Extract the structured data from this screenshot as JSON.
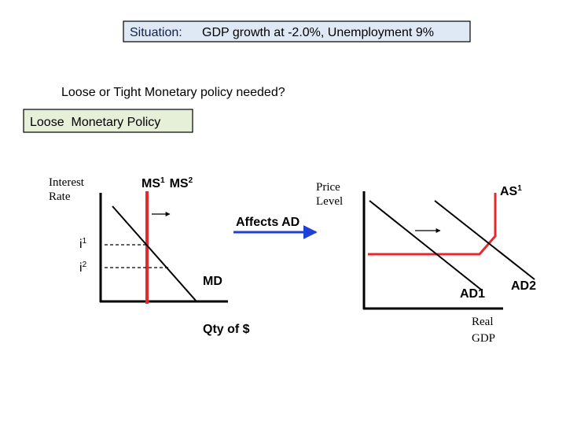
{
  "header": {
    "situation_label": "Situation:",
    "situation_text": "GDP growth at -2.0%, Unemployment 9%"
  },
  "question": "Loose or Tight Monetary policy needed?",
  "answer": "Loose  Monetary Policy",
  "money_market": {
    "y_axis": [
      "Interest",
      "Rate"
    ],
    "x_axis": "Qty of $",
    "supply_labels": [
      {
        "base": "MS",
        "sup": "1"
      },
      {
        "base": "MS",
        "sup": "2"
      }
    ],
    "demand_label": "MD",
    "rates": [
      {
        "base": "i",
        "sup": "1"
      },
      {
        "base": "i",
        "sup": "2"
      }
    ]
  },
  "link_label": "Affects AD",
  "goods_market": {
    "y_axis": [
      "Price",
      "Level"
    ],
    "x_axis": [
      "Real",
      "GDP"
    ],
    "supply_label": {
      "base": "AS",
      "sup": "1"
    },
    "demand_labels": [
      "AD1",
      "AD2"
    ]
  }
}
